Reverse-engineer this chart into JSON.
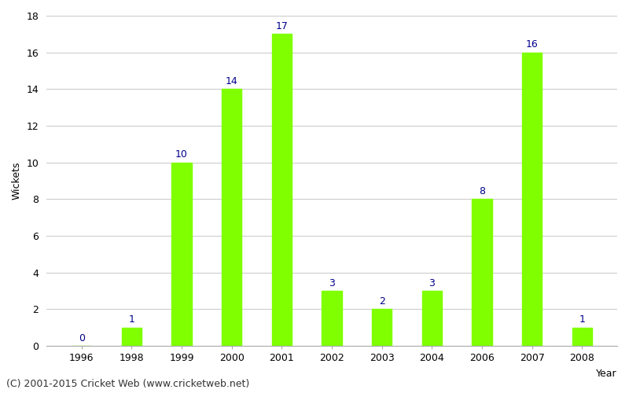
{
  "years": [
    "1996",
    "1998",
    "1999",
    "2000",
    "2001",
    "2002",
    "2003",
    "2004",
    "2006",
    "2007",
    "2008"
  ],
  "wickets": [
    0,
    1,
    10,
    14,
    17,
    3,
    2,
    3,
    8,
    16,
    1
  ],
  "bar_color": "#7fff00",
  "bar_edgecolor": "#7fff00",
  "label_color": "#00008b",
  "ylabel": "Wickets",
  "ylim": [
    0,
    18
  ],
  "yticks": [
    0,
    2,
    4,
    6,
    8,
    10,
    12,
    14,
    16,
    18
  ],
  "grid_color": "#cccccc",
  "background_color": "#ffffff",
  "footnote": "(C) 2001-2015 Cricket Web (www.cricketweb.net)",
  "label_fontsize": 9,
  "axis_fontsize": 9,
  "footnote_fontsize": 9,
  "bar_width": 0.4
}
